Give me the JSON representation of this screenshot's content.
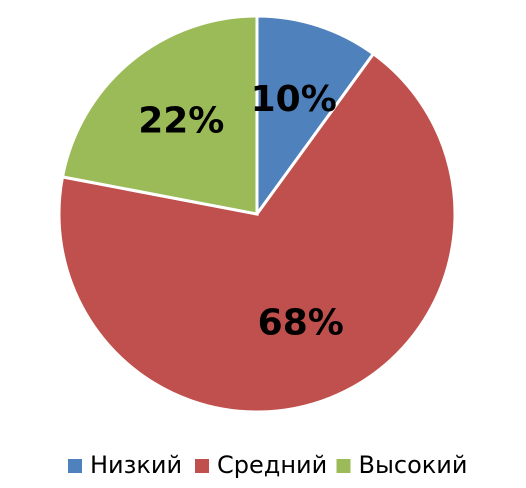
{
  "chart_data": {
    "type": "pie",
    "categories": [
      "Низкий",
      "Средний",
      "Высокий"
    ],
    "values": [
      10,
      68,
      22
    ],
    "value_labels": [
      "10%",
      "68%",
      "22%"
    ],
    "colors": [
      "#4f81bd",
      "#c0504d",
      "#9bbb59"
    ],
    "legend": "bottom"
  }
}
